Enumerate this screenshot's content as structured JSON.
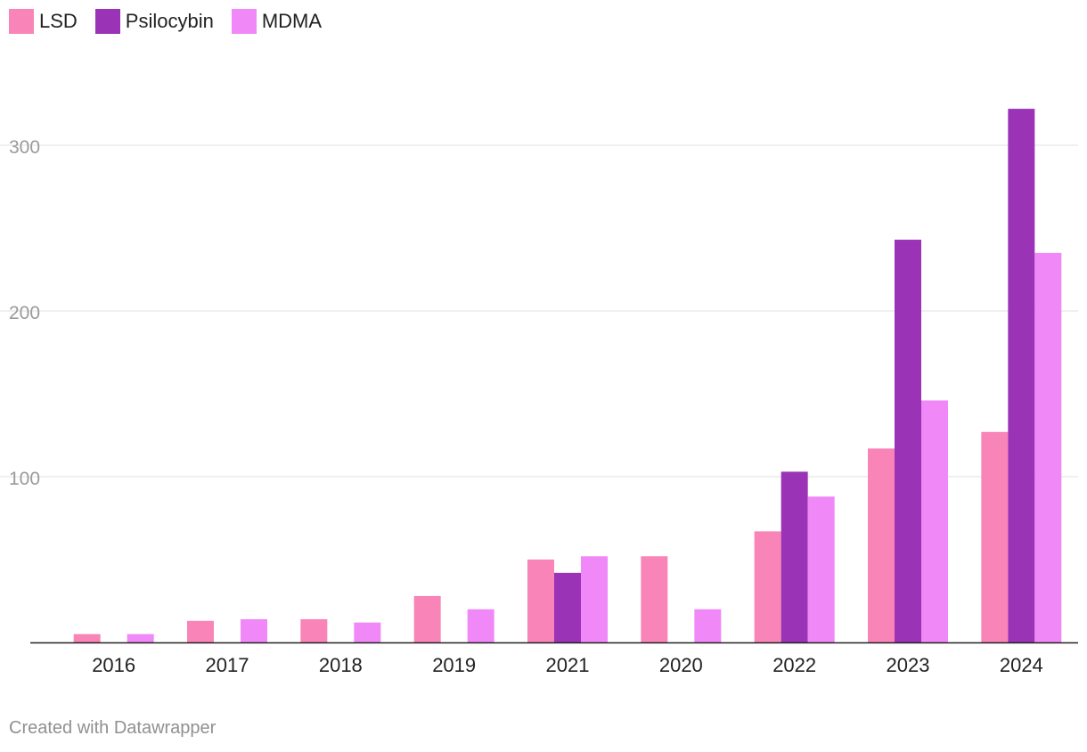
{
  "chart_data": {
    "type": "bar",
    "title": "",
    "xlabel": "",
    "ylabel": "",
    "categories": [
      "2016",
      "2017",
      "2018",
      "2019",
      "2021",
      "2020",
      "2022",
      "2023",
      "2024"
    ],
    "series": [
      {
        "name": "LSD",
        "color": "#f984b8",
        "values": [
          5,
          13,
          14,
          28,
          50,
          52,
          67,
          117,
          127
        ]
      },
      {
        "name": "Psilocybin",
        "color": "#9b33b6",
        "values": [
          0,
          0,
          0,
          0,
          42,
          0,
          103,
          243,
          322
        ]
      },
      {
        "name": "MDMA",
        "color": "#f088f8",
        "values": [
          5,
          14,
          12,
          20,
          52,
          20,
          88,
          146,
          235
        ]
      }
    ],
    "ylim": [
      0,
      350
    ],
    "yticks": [
      100,
      200,
      300
    ],
    "legend_position": "top-left",
    "grid": true
  },
  "footer": {
    "credit": "Created with Datawrapper"
  }
}
